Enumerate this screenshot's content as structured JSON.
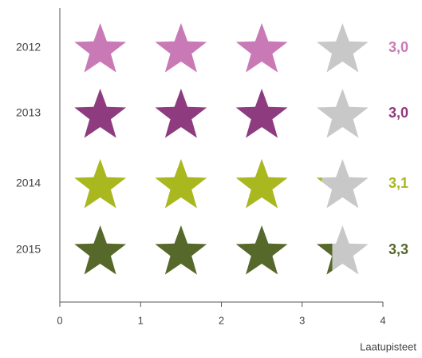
{
  "chart_data": {
    "type": "pictograph",
    "categories": [
      "2012",
      "2013",
      "2014",
      "2015"
    ],
    "values": [
      3.0,
      3.0,
      3.1,
      3.3
    ],
    "value_labels": [
      "3,0",
      "3,0",
      "3,1",
      "3,3"
    ],
    "colors": [
      "#c97ab6",
      "#8f3b7f",
      "#aab81f",
      "#56692a"
    ],
    "empty_color": "#c8c8c8",
    "xlim": [
      0,
      4
    ],
    "xticks": [
      0,
      1,
      2,
      3,
      4
    ],
    "x_label": "Laatupisteet"
  }
}
